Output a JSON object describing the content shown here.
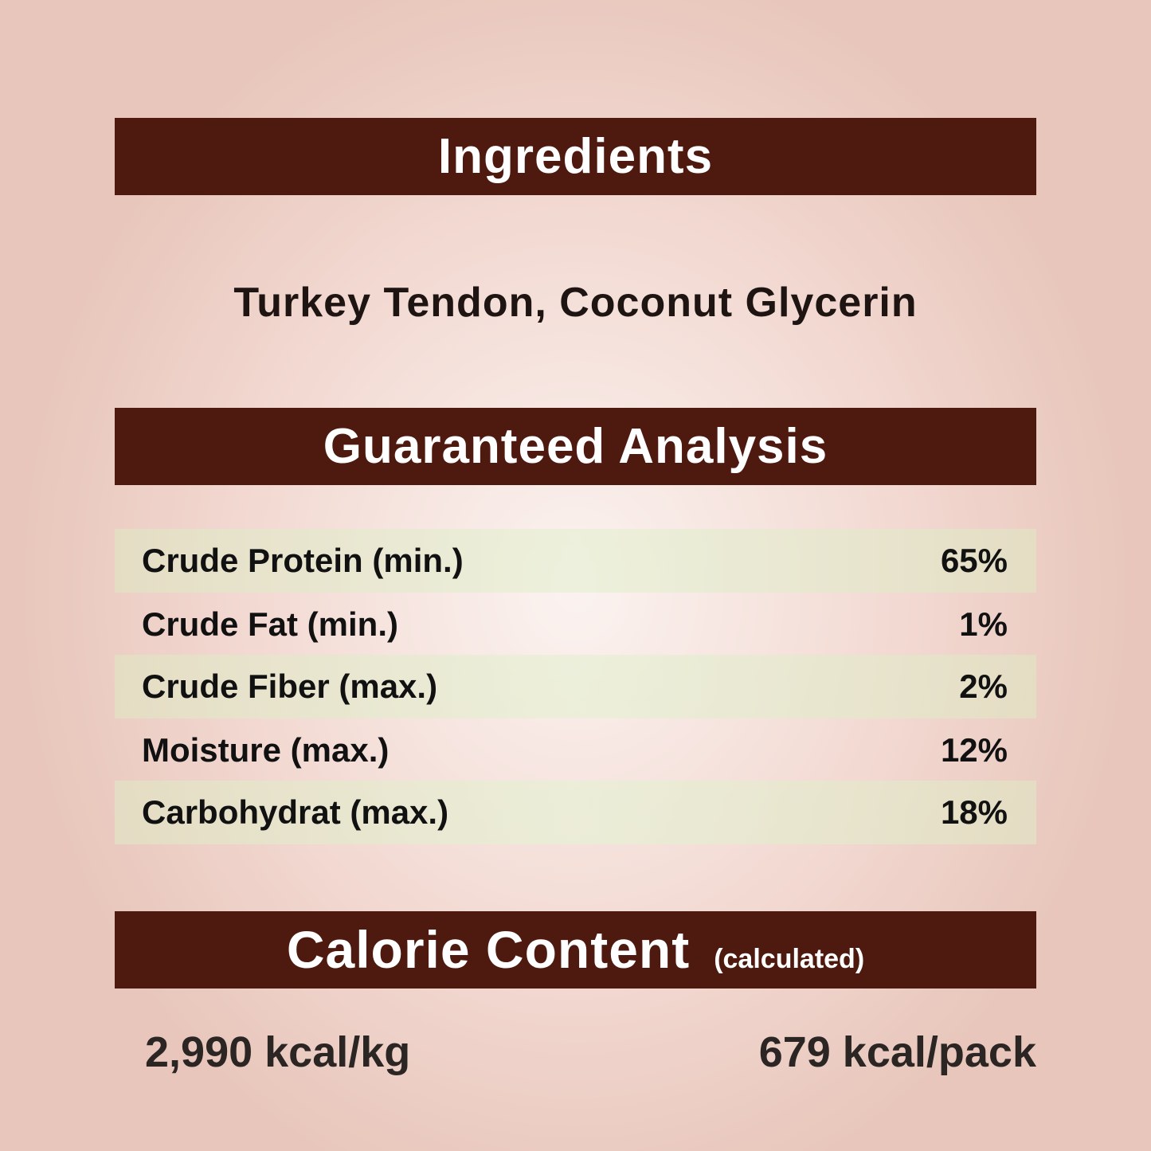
{
  "ingredients": {
    "title": "Ingredients",
    "text": "Turkey Tendon, Coconut Glycerin"
  },
  "analysis": {
    "title": "Guaranteed Analysis",
    "rows": [
      {
        "label": "Crude Protein (min.)",
        "value": "65%"
      },
      {
        "label": "Crude Fat (min.)",
        "value": "1%"
      },
      {
        "label": "Crude Fiber (max.)",
        "value": "2%"
      },
      {
        "label": "Moisture (max.)",
        "value": "12%"
      },
      {
        "label": "Carbohydrat (max.)",
        "value": "18%"
      }
    ]
  },
  "calorie": {
    "title": "Calorie Content",
    "subtitle": "(calculated)",
    "per_kg": "2,990 kcal/kg",
    "per_pack": "679 kcal/pack"
  },
  "colors": {
    "band": "#4e1a10",
    "row_shade": "#e4e6c8"
  }
}
